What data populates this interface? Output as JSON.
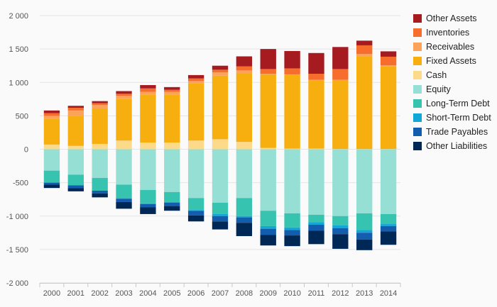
{
  "chart_data": {
    "type": "bar",
    "stacked": true,
    "categories": [
      "2000",
      "2001",
      "2002",
      "2003",
      "2004",
      "2005",
      "2006",
      "2007",
      "2008",
      "2009",
      "2010",
      "2011",
      "2012",
      "2013",
      "2014"
    ],
    "ylim": [
      -2000,
      2000
    ],
    "yticks": [
      -2000,
      -1500,
      -1000,
      -500,
      0,
      500,
      1000,
      1500,
      2000
    ],
    "ytick_labels": [
      "-2 000",
      "-1 500",
      "-1 000",
      "-500",
      "0",
      "500",
      "1 000",
      "1 500",
      "2 000"
    ],
    "grid": true,
    "legend_position": "right",
    "positive_series": [
      {
        "name": "Cash",
        "color": "#fdd98a",
        "values": [
          70,
          50,
          80,
          130,
          100,
          100,
          130,
          150,
          110,
          20,
          10,
          10,
          5,
          5,
          5
        ]
      },
      {
        "name": "Fixed Assets",
        "color": "#f7ae0f",
        "values": [
          390,
          450,
          530,
          620,
          720,
          720,
          860,
          950,
          1020,
          1100,
          1100,
          1020,
          1030,
          1380,
          1240
        ]
      },
      {
        "name": "Receivables",
        "color": "#fba35b",
        "values": [
          40,
          80,
          50,
          50,
          40,
          40,
          30,
          50,
          50,
          10,
          10,
          10,
          5,
          40,
          10
        ]
      },
      {
        "name": "Inventories",
        "color": "#f76d2c",
        "values": [
          40,
          40,
          30,
          30,
          50,
          30,
          40,
          40,
          60,
          70,
          90,
          90,
          160,
          130,
          130
        ]
      },
      {
        "name": "Other Assets",
        "color": "#a51b20",
        "values": [
          40,
          30,
          30,
          40,
          50,
          40,
          50,
          60,
          150,
          300,
          260,
          310,
          330,
          70,
          80
        ]
      }
    ],
    "negative_series": [
      {
        "name": "Equity",
        "color": "#95dfd4",
        "values": [
          -320,
          -380,
          -430,
          -530,
          -610,
          -640,
          -730,
          -800,
          -730,
          -920,
          -960,
          -980,
          -1000,
          -960,
          -970
        ]
      },
      {
        "name": "Long-Term Debt",
        "color": "#36c3b0",
        "values": [
          -180,
          -160,
          -190,
          -200,
          -200,
          -150,
          -180,
          -170,
          -270,
          -230,
          -210,
          -110,
          -140,
          -250,
          -150
        ]
      },
      {
        "name": "Short-Term Debt",
        "color": "#13a7d8",
        "values": [
          0,
          0,
          0,
          -10,
          -10,
          -10,
          -10,
          -30,
          -20,
          -40,
          -40,
          -40,
          -40,
          -40,
          -30
        ]
      },
      {
        "name": "Trade Payables",
        "color": "#135dae",
        "values": [
          -30,
          -40,
          -40,
          -50,
          -50,
          -50,
          -70,
          -80,
          -80,
          -90,
          -80,
          -90,
          -90,
          -100,
          -80
        ]
      },
      {
        "name": "Other Liabilities",
        "color": "#002856",
        "values": [
          -50,
          -50,
          -60,
          -100,
          -100,
          -70,
          -90,
          -120,
          -200,
          -160,
          -160,
          -200,
          -220,
          -160,
          -200
        ]
      }
    ],
    "legend": [
      {
        "name": "Other Assets",
        "color": "#a51b20"
      },
      {
        "name": "Inventories",
        "color": "#f76d2c"
      },
      {
        "name": "Receivables",
        "color": "#fba35b"
      },
      {
        "name": "Fixed Assets",
        "color": "#f7ae0f"
      },
      {
        "name": "Cash",
        "color": "#fdd98a"
      },
      {
        "name": "Equity",
        "color": "#95dfd4"
      },
      {
        "name": "Long-Term Debt",
        "color": "#36c3b0"
      },
      {
        "name": "Short-Term Debt",
        "color": "#13a7d8"
      },
      {
        "name": "Trade Payables",
        "color": "#135dae"
      },
      {
        "name": "Other Liabilities",
        "color": "#002856"
      }
    ]
  }
}
